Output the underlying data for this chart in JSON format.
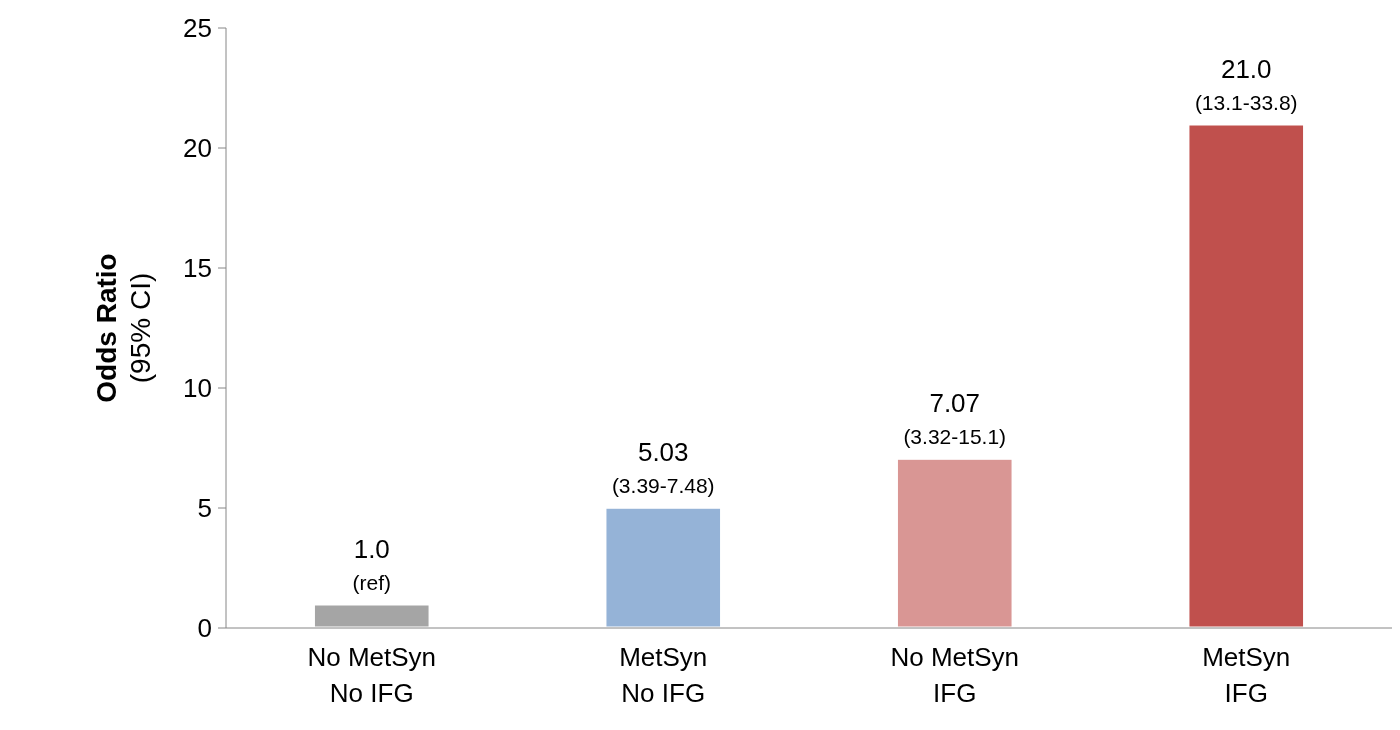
{
  "chart_data": {
    "type": "bar",
    "ylabel": "Odds Ratio\n(95% CI)",
    "categories": [
      "No MetSyn\nNo IFG",
      "MetSyn\nNo IFG",
      "No MetSyn\nIFG",
      "MetSyn\nIFG"
    ],
    "values": [
      1.0,
      5.03,
      7.07,
      21.0
    ],
    "colors": [
      "#a5a5a5",
      "#95b3d7",
      "#d99694",
      "#c0504d"
    ],
    "value_labels": [
      "1.0",
      "5.03",
      "7.07",
      "21.0"
    ],
    "annotations": [
      {
        "text": "(ref)",
        "x": "No MetSyn\nNo IFG",
        "y": 1.0
      },
      {
        "text": "(3.39-7.48)",
        "x": "MetSyn\nNo IFG",
        "y": 5.03
      },
      {
        "text": "(3.32-15.1)",
        "x": "No MetSyn\nIFG",
        "y": 7.07
      },
      {
        "text": "(13.1-33.8)",
        "x": "MetSyn\nIFG",
        "y": 21.0
      }
    ],
    "ylim": [
      0,
      25
    ],
    "yticks": [
      0,
      5,
      10,
      15,
      20,
      25
    ],
    "grid": false
  }
}
